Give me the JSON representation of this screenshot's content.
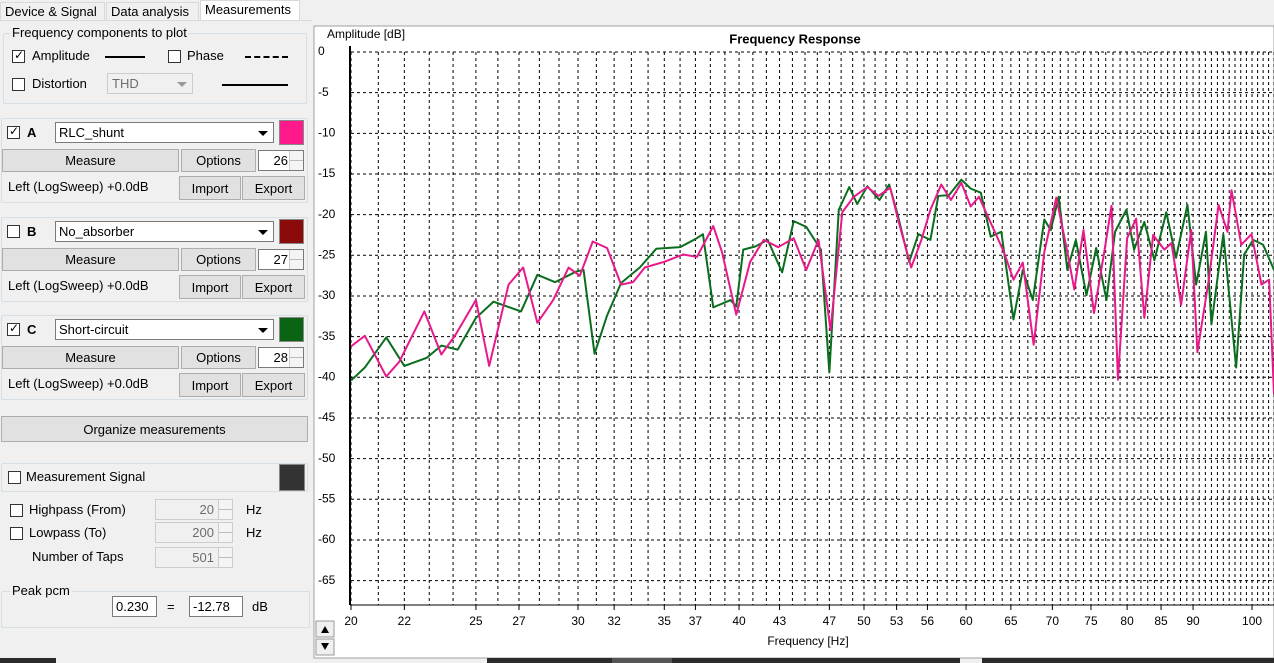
{
  "tabs": [
    "Device & Signal",
    "Data analysis",
    "Measurements"
  ],
  "active_tab": 2,
  "components": {
    "title": "Frequency components to plot",
    "amplitude": {
      "label": "Amplitude",
      "checked": true
    },
    "phase": {
      "label": "Phase",
      "checked": false
    },
    "distortion": {
      "label": "Distortion",
      "checked": false,
      "mode": "THD"
    }
  },
  "measurements": [
    {
      "checked": true,
      "letter": "A",
      "name": "RLC_shunt",
      "color": "#ff1a8c",
      "measure": "Measure",
      "options": "Options",
      "index": 26,
      "source": "Left (LogSweep) +0.0dB",
      "import": "Import",
      "export": "Export"
    },
    {
      "checked": false,
      "letter": "B",
      "name": "No_absorber",
      "color": "#8b0a0a",
      "measure": "Measure",
      "options": "Options",
      "index": 27,
      "source": "Left (LogSweep) +0.0dB",
      "import": "Import",
      "export": "Export"
    },
    {
      "checked": true,
      "letter": "C",
      "name": "Short-circuit",
      "color": "#0b6414",
      "measure": "Measure",
      "options": "Options",
      "index": 28,
      "source": "Left (LogSweep) +0.0dB",
      "import": "Import",
      "export": "Export"
    }
  ],
  "organize": "Organize measurements",
  "signal": {
    "label": "Measurement Signal",
    "checked": false,
    "color": "#333333",
    "highpass": {
      "label": "Highpass (From)",
      "checked": false,
      "value": 20,
      "unit": "Hz"
    },
    "lowpass": {
      "label": "Lowpass (To)",
      "checked": false,
      "value": 200,
      "unit": "Hz"
    },
    "taps": {
      "label": "Number of Taps",
      "value": 501
    }
  },
  "peak": {
    "title": "Peak pcm",
    "pcm": "0.230",
    "equals": "=",
    "db": -12.78,
    "unit": "dB"
  },
  "chart_data": {
    "type": "line",
    "title": "Frequency Response",
    "y_label": "Amplitude [dB]",
    "x_label": "Frequency [Hz]",
    "x_scale": "log",
    "xlim": [
      20,
      104
    ],
    "xticks": [
      20,
      22,
      25,
      27,
      30,
      32,
      35,
      37,
      40,
      43,
      47,
      50,
      53,
      56,
      60,
      65,
      70,
      75,
      80,
      85,
      90,
      100
    ],
    "ylim": [
      -68,
      0
    ],
    "yticks": [
      0,
      -5,
      -10,
      -15,
      -20,
      -25,
      -30,
      -35,
      -40,
      -45,
      -50,
      -55,
      -60,
      -65
    ],
    "grid": true,
    "x_minor_grid_step": 1,
    "series": [
      {
        "color": "#0a6e1e",
        "x": [
          20.0,
          20.5,
          21.3,
          22.0,
          22.9,
          23.5,
          24.2,
          25.0,
          25.8,
          27.1,
          27.9,
          28.8,
          29.9,
          30.3,
          30.9,
          31.6,
          32.4,
          33.5,
          34.5,
          36.0,
          37.0,
          37.5,
          38.2,
          39.4,
          39.8,
          40.3,
          41.2,
          42.1,
          43.2,
          44.1,
          45.1,
          46.3,
          47.0,
          47.8,
          48.7,
          49.4,
          50.3,
          51.4,
          52.3,
          53.1,
          54.2,
          55.1,
          56.3,
          57.1,
          58.2,
          59.5,
          60.5,
          61.6,
          62.7,
          63.9,
          65.3,
          66.4,
          67.6,
          69.0,
          69.8,
          70.8,
          71.9,
          73.0,
          74.4,
          75.7,
          77.1,
          78.3,
          79.9,
          81.0,
          82.5,
          84.0,
          85.8,
          87.3,
          89.1,
          90.5,
          92.1,
          93.0,
          95.0,
          97.2,
          98.6,
          100.2,
          102.0,
          104
        ],
        "values": [
          -40.4,
          -38.8,
          -35.1,
          -38.6,
          -37.6,
          -36.1,
          -36.6,
          -32.7,
          -30.7,
          -31.9,
          -27.4,
          -28.3,
          -27.0,
          -26.8,
          -37.1,
          -32.4,
          -28.4,
          -26.5,
          -24.2,
          -24.0,
          -23.0,
          -22.4,
          -31.4,
          -30.5,
          -31.3,
          -24.3,
          -23.9,
          -23.1,
          -27.1,
          -20.8,
          -21.5,
          -24.3,
          -39.4,
          -19.4,
          -16.6,
          -18.7,
          -16.5,
          -18.2,
          -16.3,
          -20.0,
          -25.8,
          -22.4,
          -23.1,
          -17.7,
          -17.6,
          -15.7,
          -16.8,
          -17.3,
          -22.7,
          -22.1,
          -32.9,
          -26.8,
          -30.5,
          -20.6,
          -21.9,
          -17.8,
          -26.8,
          -23.1,
          -29.9,
          -24.1,
          -30.5,
          -22.1,
          -19.4,
          -24.3,
          -20.9,
          -25.6,
          -19.7,
          -25.3,
          -18.8,
          -28.6,
          -22.1,
          -33.5,
          -22.4,
          -38.8,
          -24.9,
          -23.1,
          -23.7,
          -26.8
        ]
      },
      {
        "color": "#e8198b",
        "x": [
          20.0,
          20.5,
          21.3,
          21.8,
          22.8,
          23.5,
          24.1,
          25.0,
          25.6,
          26.5,
          27.2,
          27.9,
          28.7,
          29.5,
          30.1,
          30.8,
          31.6,
          32.4,
          33.1,
          33.8,
          35.0,
          36.2,
          37.1,
          38.2,
          38.8,
          39.8,
          40.8,
          41.8,
          42.9,
          44.1,
          45.1,
          46.1,
          47.1,
          48.1,
          49.1,
          50.3,
          51.3,
          52.4,
          53.2,
          54.4,
          55.4,
          56.3,
          57.4,
          58.4,
          59.5,
          60.5,
          61.4,
          62.7,
          64.2,
          65.3,
          66.4,
          67.7,
          69.0,
          70.5,
          71.9,
          72.8,
          74.0,
          75.4,
          76.8,
          77.8,
          78.7,
          80.0,
          81.3,
          82.5,
          83.8,
          85.5,
          86.6,
          88.1,
          89.7,
          90.7,
          92.5,
          94.2,
          95.7,
          96.4,
          98.1,
          99.9,
          101.7,
          103.1,
          104
        ],
        "values": [
          -36.2,
          -34.9,
          -39.9,
          -38.1,
          -31.9,
          -37.2,
          -34.8,
          -30.5,
          -38.6,
          -28.6,
          -26.5,
          -33.3,
          -30.5,
          -26.5,
          -27.5,
          -23.3,
          -24.1,
          -28.6,
          -28.3,
          -26.5,
          -25.8,
          -24.9,
          -25.2,
          -21.4,
          -24.6,
          -32.3,
          -25.8,
          -23.1,
          -24.0,
          -22.9,
          -26.8,
          -23.1,
          -34.2,
          -19.7,
          -17.8,
          -16.6,
          -17.7,
          -16.7,
          -20.9,
          -26.5,
          -23.1,
          -19.4,
          -16.3,
          -18.2,
          -16.1,
          -19.0,
          -17.8,
          -21.0,
          -24.6,
          -28.0,
          -25.9,
          -36.0,
          -24.6,
          -17.9,
          -24.6,
          -29.2,
          -21.9,
          -32.1,
          -24.6,
          -18.9,
          -40.3,
          -22.9,
          -20.5,
          -32.7,
          -22.5,
          -24.3,
          -23.5,
          -31.1,
          -21.9,
          -36.9,
          -28.3,
          -18.8,
          -22.1,
          -17.0,
          -23.7,
          -22.4,
          -28.6,
          -28.0,
          -42.1
        ]
      }
    ]
  }
}
